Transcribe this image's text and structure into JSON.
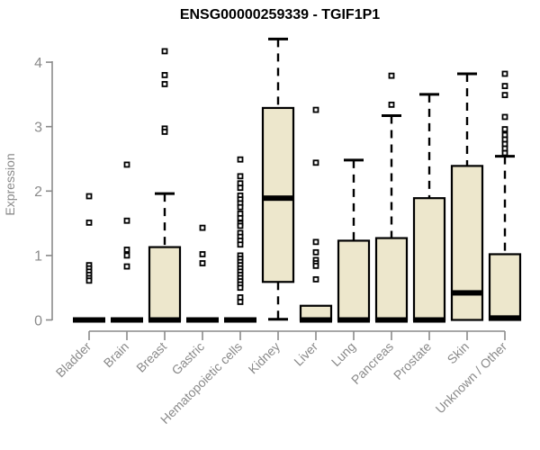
{
  "chart_data": {
    "type": "boxplot",
    "title": "ENSG00000259339 - TGIF1P1",
    "xlabel": "",
    "ylabel": "Expression",
    "ylim": [
      0,
      4.4
    ],
    "yticks": [
      0,
      1,
      2,
      3,
      4
    ],
    "grid": false,
    "legend": "none",
    "categories": [
      "Bladder",
      "Brain",
      "Breast",
      "Gastric",
      "Hematopoietic cells",
      "Kidney",
      "Liver",
      "Lung",
      "Pancreas",
      "Prostate",
      "Skin",
      "Unknown / Other"
    ],
    "series": [
      {
        "category": "Bladder",
        "whisker_low": 0,
        "q1": 0,
        "median": 0,
        "q3": 0,
        "whisker_high": 0,
        "outliers": [
          1.92,
          1.51,
          0.85,
          0.8,
          0.75,
          0.7,
          0.65,
          0.61
        ]
      },
      {
        "category": "Brain",
        "whisker_low": 0,
        "q1": 0,
        "median": 0,
        "q3": 0,
        "whisker_high": 0,
        "outliers": [
          2.41,
          1.54,
          1.09,
          1.0,
          0.83
        ]
      },
      {
        "category": "Breast",
        "whisker_low": 0,
        "q1": 0,
        "median": 0,
        "q3": 1.13,
        "whisker_high": 1.96,
        "outliers": [
          4.17,
          3.8,
          3.66,
          2.97,
          2.92
        ]
      },
      {
        "category": "Gastric",
        "whisker_low": 0,
        "q1": 0,
        "median": 0,
        "q3": 0,
        "whisker_high": 0,
        "outliers": [
          1.43,
          1.02,
          0.88
        ]
      },
      {
        "category": "Hematopoietic cells",
        "whisker_low": 0,
        "q1": 0,
        "median": 0,
        "q3": 0,
        "whisker_high": 0,
        "outliers": [
          2.49,
          2.23,
          2.12,
          2.05,
          1.93,
          1.87,
          1.81,
          1.75,
          1.65,
          1.58,
          1.5,
          1.46,
          1.35,
          1.29,
          1.23,
          1.17,
          1.0,
          0.95,
          0.9,
          0.85,
          0.8,
          0.75,
          0.7,
          0.65,
          0.6,
          0.55,
          0.5,
          0.35,
          0.28
        ]
      },
      {
        "category": "Kidney",
        "whisker_low": 0.01,
        "q1": 0.59,
        "median": 1.89,
        "q3": 3.29,
        "whisker_high": 4.36,
        "outliers": []
      },
      {
        "category": "Liver",
        "whisker_low": 0,
        "q1": 0,
        "median": 0,
        "q3": 0.22,
        "whisker_high": 0.22,
        "outliers": [
          3.26,
          2.44,
          1.21,
          1.05,
          0.93,
          0.88,
          0.84,
          0.63
        ]
      },
      {
        "category": "Lung",
        "whisker_low": 0,
        "q1": 0,
        "median": 0,
        "q3": 1.23,
        "whisker_high": 2.48,
        "outliers": []
      },
      {
        "category": "Pancreas",
        "whisker_low": 0,
        "q1": 0,
        "median": 0,
        "q3": 1.27,
        "whisker_high": 3.17,
        "outliers": [
          3.79,
          3.34
        ]
      },
      {
        "category": "Prostate",
        "whisker_low": 0,
        "q1": 0,
        "median": 0,
        "q3": 1.89,
        "whisker_high": 3.5,
        "outliers": []
      },
      {
        "category": "Skin",
        "whisker_low": 0,
        "q1": 0,
        "median": 0.42,
        "q3": 2.39,
        "whisker_high": 3.82,
        "outliers": []
      },
      {
        "category": "Unknown / Other",
        "whisker_low": 0,
        "q1": 0,
        "median": 0.03,
        "q3": 1.02,
        "whisker_high": 2.54,
        "outliers": [
          3.82,
          3.63,
          3.49,
          3.15,
          2.96,
          2.87,
          2.8,
          2.73,
          2.66,
          2.59
        ]
      }
    ],
    "colors": {
      "box_fill": "#ede7cc",
      "box_stroke": "#000000",
      "median": "#000000",
      "whisker": "#000000",
      "outlier_stroke": "#000000",
      "axis": "#8a8a8a",
      "tick_label": "#8a8a8a",
      "title": "#000000",
      "background": "#ffffff"
    }
  }
}
